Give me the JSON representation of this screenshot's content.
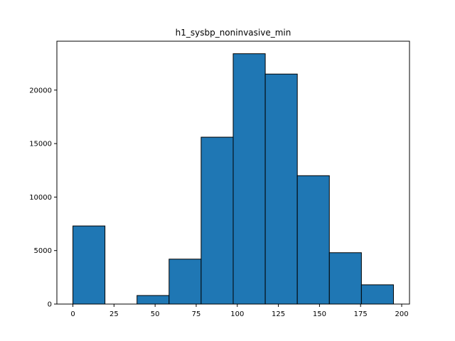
{
  "chart_data": {
    "type": "bar",
    "title": "h1_sysbp_noninvasive_min",
    "xlabel": "",
    "ylabel": "",
    "bin_edges": [
      0,
      19.5,
      39,
      58.5,
      78,
      97.5,
      117,
      136.5,
      156,
      175.5,
      195
    ],
    "values": [
      7300,
      0,
      800,
      4200,
      15600,
      23400,
      21500,
      12000,
      4800,
      1800
    ],
    "xlim": [
      -9.75,
      204.75
    ],
    "ylim": [
      0,
      24570
    ],
    "xticks": [
      0,
      25,
      50,
      75,
      100,
      125,
      150,
      175,
      200
    ],
    "yticks": [
      0,
      5000,
      10000,
      15000,
      20000
    ],
    "bar_color": "#1f77b4",
    "edge_color": "#000000",
    "grid": false,
    "legend": "none"
  }
}
